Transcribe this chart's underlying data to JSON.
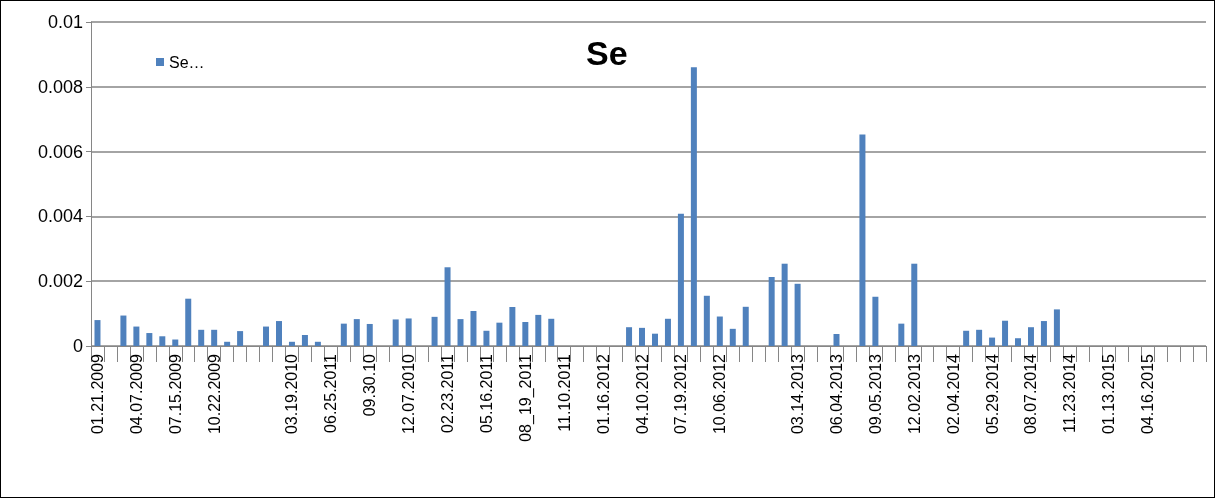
{
  "chart_data": {
    "type": "bar",
    "title": "Se",
    "legend": "top left",
    "grid": "y",
    "categories": [
      "01.21.2009",
      null,
      null,
      "04.07.2009",
      null,
      null,
      "07.15.2009",
      null,
      null,
      "10.22.2009",
      null,
      null,
      null,
      null,
      null,
      "03.19.2010",
      null,
      null,
      "06.25.2011",
      null,
      null,
      "09.30.10",
      null,
      null,
      "12.07.2010",
      null,
      null,
      "02.23.2011",
      null,
      null,
      "05.16.2011",
      null,
      null,
      "08_19_2011",
      null,
      null,
      "11.10.2011",
      null,
      null,
      "01.16.2012",
      null,
      null,
      "04.10.2012",
      null,
      null,
      "07.19.2012",
      null,
      null,
      "10.06.2012",
      null,
      null,
      null,
      null,
      null,
      "03.14.2013",
      null,
      null,
      "06.04.2013",
      null,
      null,
      "09.05.2013",
      null,
      null,
      "12.02.2013",
      null,
      null,
      "02.04.2014",
      null,
      null,
      "05.29.2014",
      null,
      null,
      "08.07.2014",
      null,
      null,
      "11.23.2014",
      null,
      null,
      "01.13.2015",
      null,
      null,
      "04.16.2015",
      null,
      null,
      null,
      null
    ],
    "series": [
      {
        "name": "Se…",
        "color": "#4f81bd",
        "values": [
          0.0008,
          null,
          0.00094,
          0.0006,
          0.0004,
          0.0003,
          0.0002,
          0.00146,
          0.0005,
          0.0005,
          0.00013,
          0.00046,
          null,
          0.0006,
          0.00077,
          0.00013,
          0.00034,
          0.00013,
          null,
          0.00069,
          0.00083,
          0.00068,
          null,
          0.00082,
          0.00085,
          null,
          0.0009,
          0.00243,
          0.00083,
          0.00108,
          0.00047,
          0.00072,
          0.0012,
          0.00074,
          0.00096,
          0.00084,
          null,
          null,
          null,
          null,
          null,
          0.00058,
          0.00056,
          0.00038,
          0.00084,
          0.00408,
          0.0086,
          0.00155,
          0.00091,
          0.00053,
          0.00121,
          null,
          0.00213,
          0.00254,
          0.00192,
          null,
          null,
          0.00037,
          null,
          0.00653,
          0.00152,
          null,
          0.00069,
          0.00254,
          null,
          null,
          null,
          0.00047,
          0.0005,
          0.00026,
          0.00078,
          0.00024,
          0.00058,
          0.00077,
          0.00113,
          null,
          null,
          null,
          null,
          null,
          null,
          null,
          null,
          null,
          null,
          null
        ]
      }
    ],
    "ylim": [
      0,
      0.01
    ],
    "yticks": [
      0,
      0.002,
      0.004,
      0.006,
      0.008,
      0.01
    ]
  }
}
